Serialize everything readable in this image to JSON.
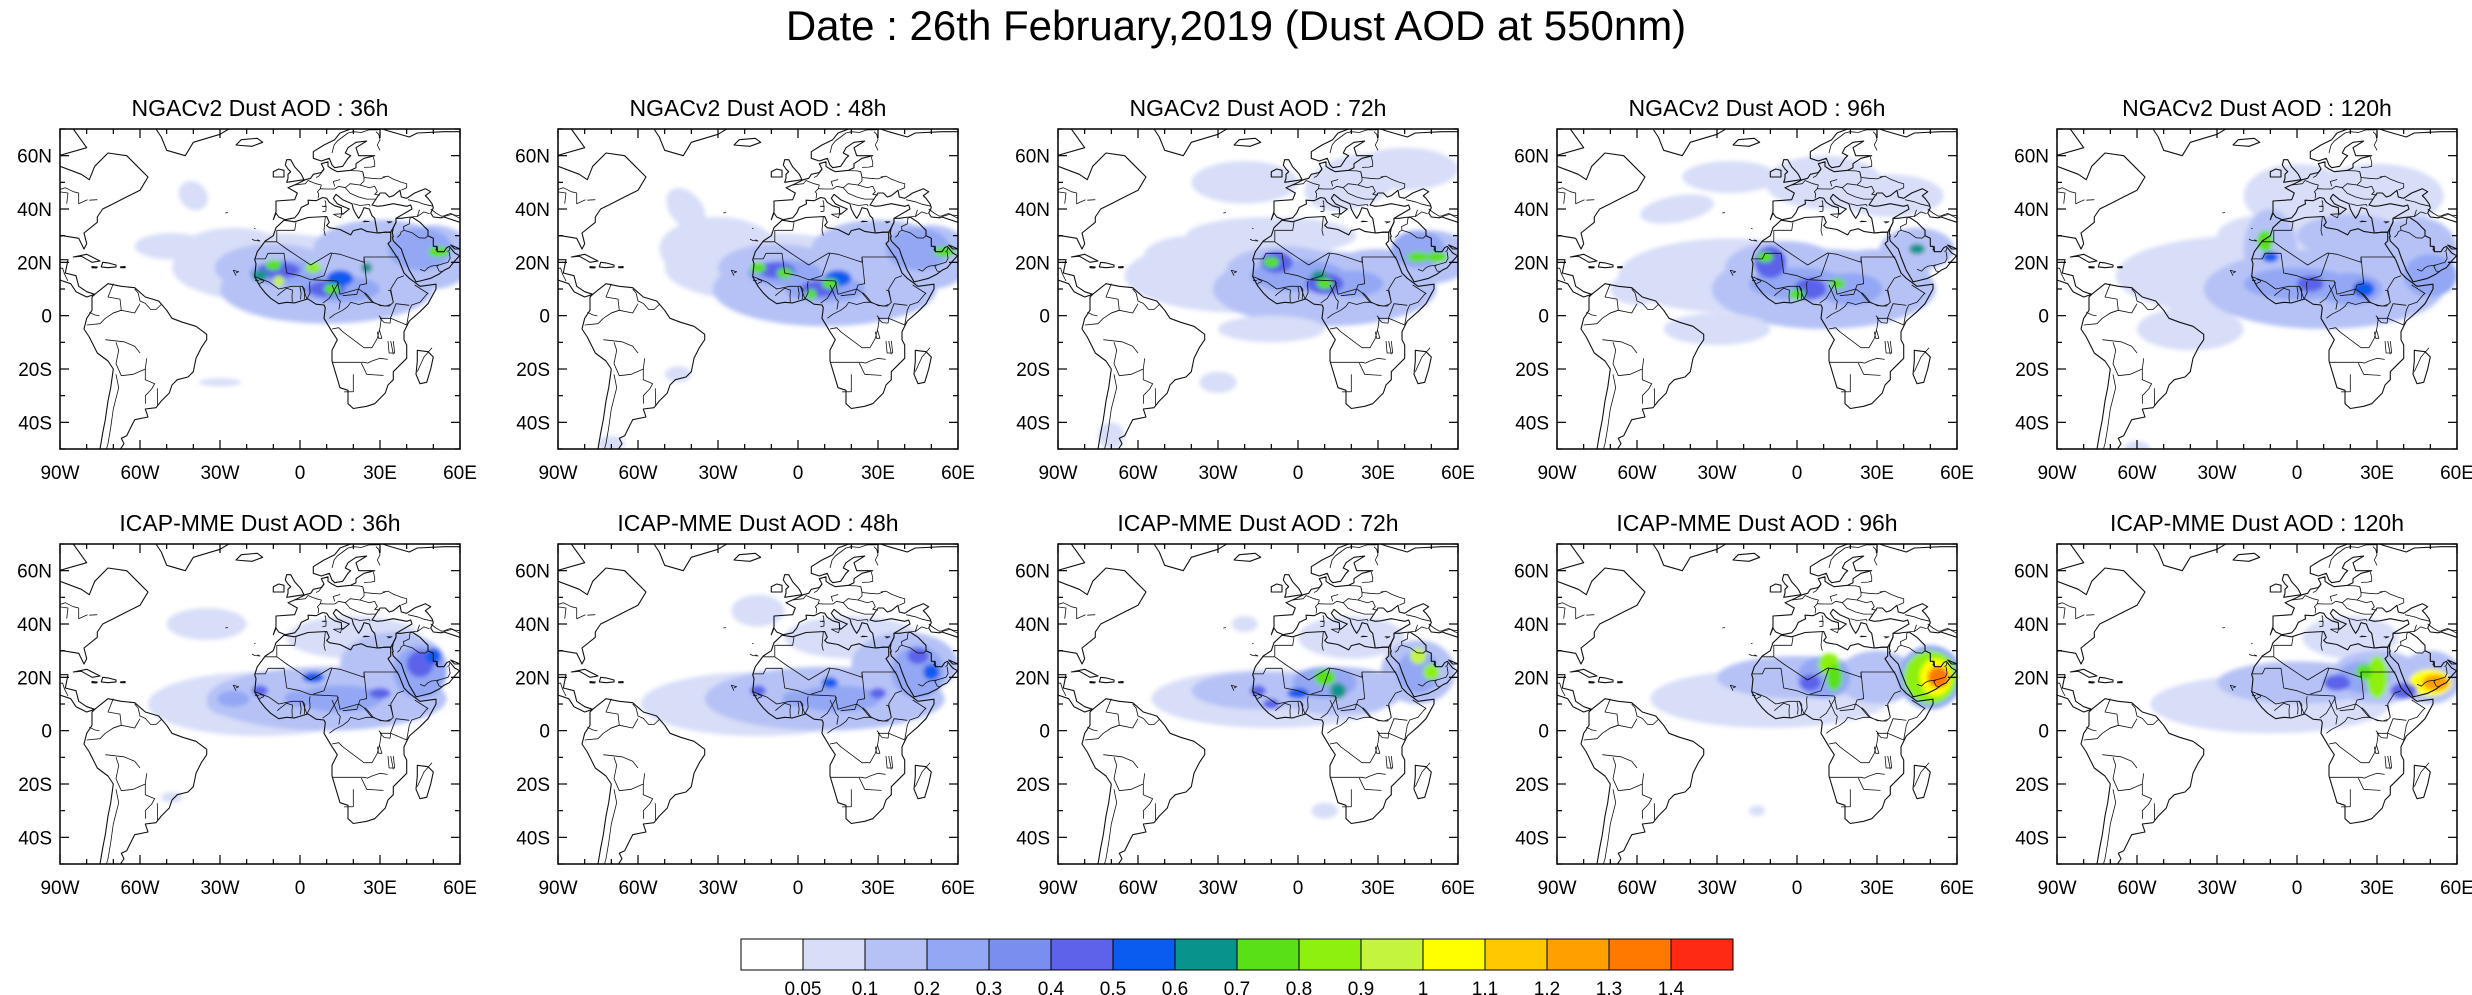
{
  "title": "Date : 26th February,2019 (Dust AOD at 550nm)",
  "panel_titles": [
    [
      "NGACv2 Dust AOD : 36h",
      "NGACv2 Dust AOD : 48h",
      "NGACv2 Dust AOD : 72h",
      "NGACv2 Dust AOD : 96h",
      "NGACv2 Dust AOD : 120h"
    ],
    [
      "ICAP-MME Dust AOD : 36h",
      "ICAP-MME Dust AOD : 48h",
      "ICAP-MME Dust AOD : 72h",
      "ICAP-MME Dust AOD : 96h",
      "ICAP-MME Dust AOD : 120h"
    ]
  ],
  "map": {
    "lon_range": [
      -90,
      60
    ],
    "lat_range": [
      -50,
      70
    ],
    "lon_ticks": [
      "90W",
      "60W",
      "30W",
      "0",
      "30E",
      "60E"
    ],
    "lat_ticks": [
      "60N",
      "40N",
      "20N",
      "0",
      "20S",
      "40S"
    ],
    "lon_tick_values": [
      -90,
      -60,
      -30,
      0,
      30,
      60
    ],
    "lat_tick_values": [
      60,
      40,
      20,
      0,
      -20,
      -40
    ]
  },
  "colorbar": {
    "labels": [
      "0.05",
      "0.1",
      "0.2",
      "0.3",
      "0.4",
      "0.5",
      "0.6",
      "0.7",
      "0.8",
      "0.9",
      "1",
      "1.1",
      "1.2",
      "1.3",
      "1.4"
    ],
    "colors": [
      "#ffffff",
      "#d8def8",
      "#b6c2f6",
      "#93a7f4",
      "#7a8ef0",
      "#5c63ea",
      "#0a5cf0",
      "#08948c",
      "#5ae016",
      "#8ef00e",
      "#c4f43e",
      "#ffff00",
      "#ffc800",
      "#ffa000",
      "#ff7800",
      "#ff2a14"
    ]
  }
}
